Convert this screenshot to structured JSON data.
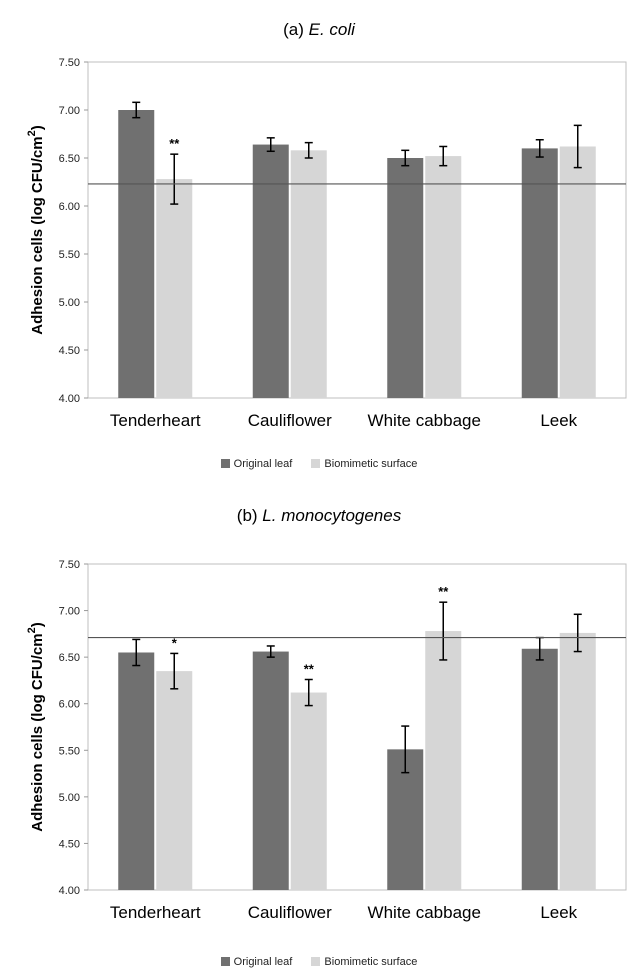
{
  "chart_data": [
    {
      "type": "bar",
      "panel_label": "(a)",
      "organism": "E. coli",
      "ylabel": "Adhesion cells (log CFU/cm",
      "ylabel_sup": "2",
      "ylabel_end": ")",
      "ylim": [
        4.0,
        7.5
      ],
      "yticks": [
        "4.00",
        "4.50",
        "5.00",
        "5.50",
        "6.00",
        "6.50",
        "7.00",
        "7.50"
      ],
      "categories": [
        "Tenderheart",
        "Cauliflower",
        "White cabbage",
        "Leek"
      ],
      "series": [
        {
          "name": "Original leaf",
          "color": "#707070",
          "values": [
            7.0,
            6.64,
            6.5,
            6.6
          ],
          "errors": [
            0.08,
            0.07,
            0.08,
            0.09
          ]
        },
        {
          "name": "Biomimetic surface",
          "color": "#d6d6d6",
          "values": [
            6.28,
            6.58,
            6.52,
            6.62
          ],
          "errors": [
            0.26,
            0.08,
            0.1,
            0.22
          ]
        }
      ],
      "reference_line": 6.23,
      "annotations": [
        {
          "category": 0,
          "series": 1,
          "text": "**"
        }
      ],
      "grid": false,
      "legend_position": "bottom"
    },
    {
      "type": "bar",
      "panel_label": "(b)",
      "organism": "L. monocytogenes",
      "ylabel": "Adhesion cells (log CFU/cm",
      "ylabel_sup": "2",
      "ylabel_end": ")",
      "ylim": [
        4.0,
        7.5
      ],
      "yticks": [
        "4.00",
        "4.50",
        "5.00",
        "5.50",
        "6.00",
        "6.50",
        "7.00",
        "7.50"
      ],
      "categories": [
        "Tenderheart",
        "Cauliflower",
        "White cabbage",
        "Leek"
      ],
      "series": [
        {
          "name": "Original leaf",
          "color": "#707070",
          "values": [
            6.55,
            6.56,
            5.51,
            6.59
          ],
          "errors": [
            0.14,
            0.06,
            0.25,
            0.12
          ]
        },
        {
          "name": "Biomimetic surface",
          "color": "#d6d6d6",
          "values": [
            6.35,
            6.12,
            6.78,
            6.76
          ],
          "errors": [
            0.19,
            0.14,
            0.31,
            0.2
          ]
        }
      ],
      "reference_line": 6.71,
      "annotations": [
        {
          "category": 0,
          "series": 1,
          "text": "*"
        },
        {
          "category": 1,
          "series": 1,
          "text": "**"
        },
        {
          "category": 2,
          "series": 1,
          "text": "**"
        }
      ],
      "grid": false,
      "legend_position": "bottom"
    }
  ]
}
